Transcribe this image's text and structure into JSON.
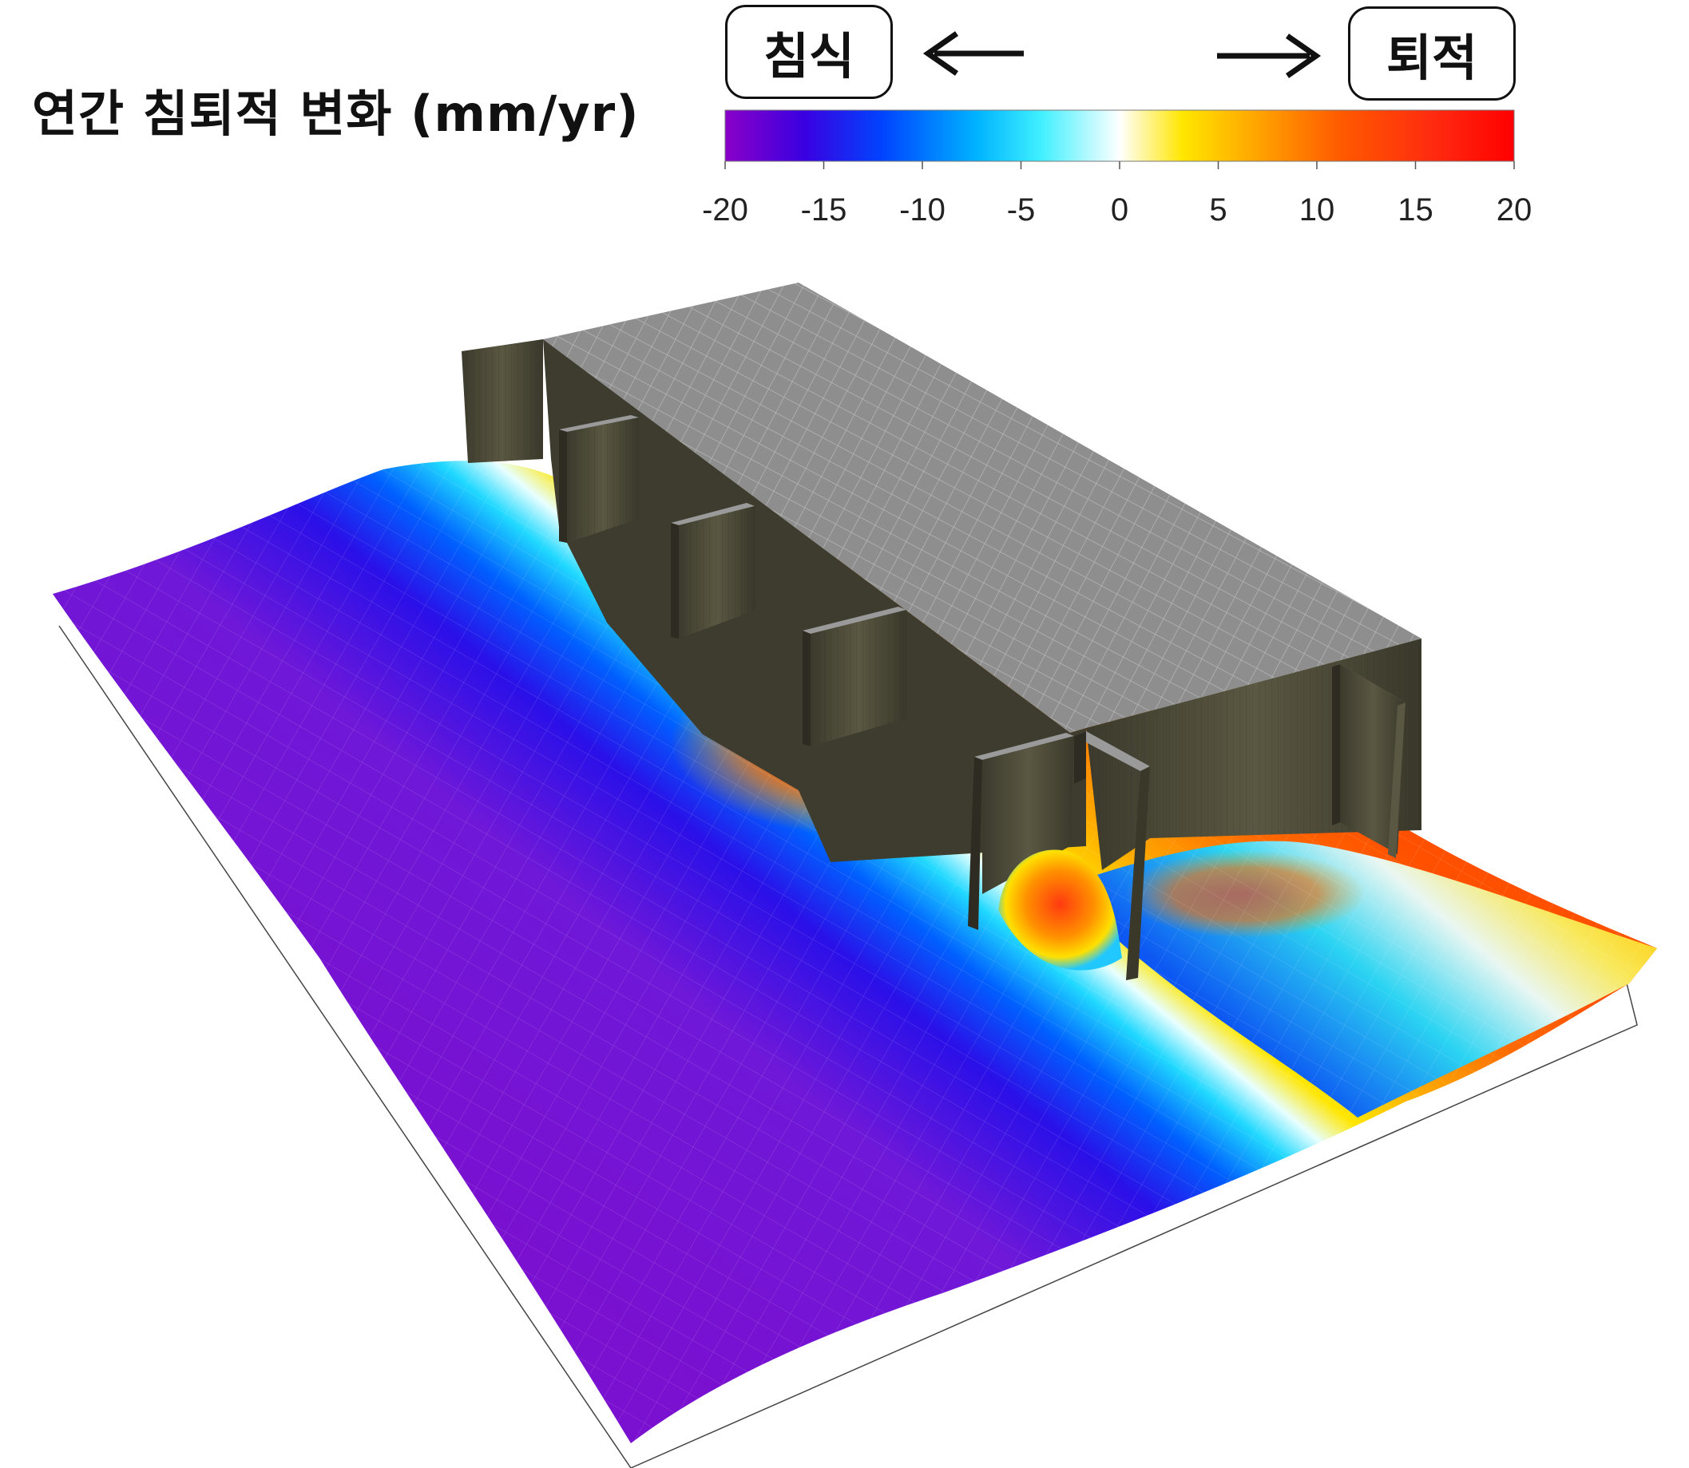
{
  "title": "연간 침퇴적 변화 (mm/yr)",
  "legend": {
    "erosion_label": "침식",
    "deposition_label": "퇴적",
    "ticks": [
      "-20",
      "-15",
      "-10",
      "-5",
      "0",
      "5",
      "10",
      "15",
      "20"
    ],
    "range": [
      -20,
      20
    ],
    "colors": [
      "#8a00c8",
      "#3a00e0",
      "#0044ff",
      "#00b4ff",
      "#40f0ff",
      "#ffffff",
      "#ffe600",
      "#ffa000",
      "#ff5a00",
      "#ff2a10",
      "#ff0000"
    ]
  },
  "colors": {
    "structure_top": "#8e8e8e",
    "structure_wall": "#4a4836",
    "seabed_far": "#7a10d0"
  }
}
